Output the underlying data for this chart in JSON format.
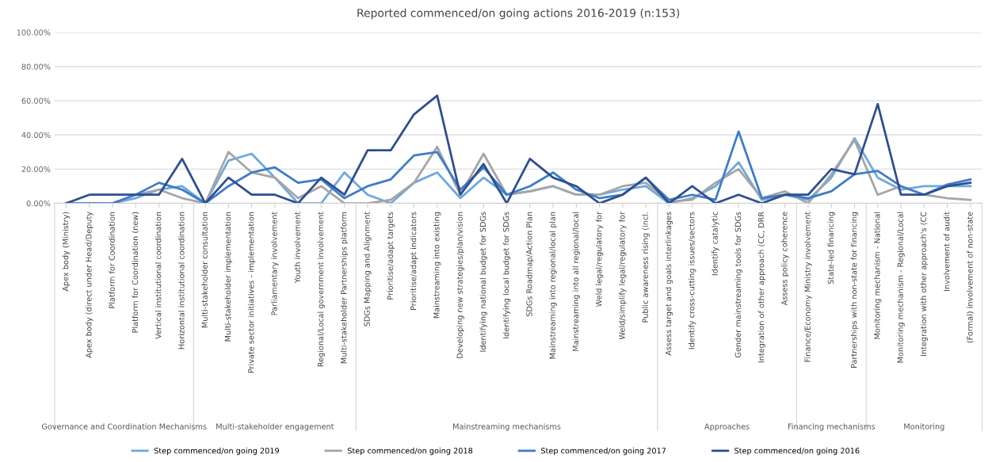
{
  "chart_data": {
    "type": "line",
    "title": "Reported commenced/on going actions 2016-2019 (n:153)",
    "categories": [
      "Apex body (Ministry)",
      "Apex body (direct under Head/Deputy",
      "Platform for Coordination",
      "Platform for Coordination (new)",
      "Vertical institutional coordination",
      "Horizontal institutional coordination",
      "Multi-stakeholder consultation",
      "Multi-stakeholder implementation",
      "Private sector initiatives - implementation",
      "Parliamentary involvement",
      "Youth involvement",
      "Regional/Local government involvement",
      "Multi-stakeholder Partnerships platform",
      "SDGs Mapping and Alignment",
      "Prioritise/adapt targets",
      "Prioritise/adapt indicators",
      "Mainstreaming into existing",
      "Developing new strategies/plan/vision",
      "Identifying national budget for SDGs",
      "Identifying local budget for SDGs",
      "SDGs Roadmap/Action Plan",
      "Mainstreaming into regional/local plan",
      "Mainstreaming into all regional/local",
      "Weld legal/regulatory for",
      "Weld/simplify legal/regulatory for",
      "Public awareness rising (incl.",
      "Assess target and goals interlinkages",
      "Identify cross-cutting issues/sectors",
      "Identify catalytic",
      "Gender mainstreaming tools for SDGs",
      "Integration of other approach (CC, DRR",
      "Assess policy coherence",
      "Finance/Economy Ministry involvement",
      "State-led financing",
      "Partnerships with non-state for financing",
      "Monitoring mechanism - National",
      "Monitoring mechanism - Regional/Local",
      "Integration with other approach's (CC",
      "Involvement of audit",
      "(Formal) involvement of non-state"
    ],
    "series": [
      {
        "name": "Step commenced/on going 2019",
        "color": "#6fa8dc",
        "values": [
          0,
          0,
          0,
          3,
          8,
          10,
          0,
          25,
          29,
          15,
          0,
          0,
          18,
          5,
          0,
          12,
          18,
          3,
          15,
          5,
          7,
          10,
          5,
          5,
          8,
          10,
          0,
          3,
          10,
          24,
          2,
          5,
          2,
          15,
          38,
          15,
          8,
          10,
          10,
          10
        ]
      },
      {
        "name": "Step commenced/on going 2018",
        "color": "#a5a5a5",
        "values": [
          0,
          0,
          0,
          5,
          8,
          3,
          0,
          30,
          18,
          15,
          3,
          10,
          0,
          0,
          2,
          12,
          33,
          5,
          29,
          5,
          7,
          10,
          5,
          5,
          10,
          12,
          1,
          2,
          12,
          20,
          3,
          7,
          0,
          17,
          37,
          5,
          10,
          5,
          3,
          2
        ]
      },
      {
        "name": "Step commenced/on going 2017",
        "color": "#3d7cc9",
        "values": [
          0,
          0,
          0,
          5,
          12,
          8,
          0,
          10,
          18,
          21,
          12,
          14,
          3,
          10,
          14,
          28,
          30,
          8,
          21,
          5,
          10,
          18,
          8,
          3,
          5,
          15,
          2,
          5,
          2,
          42,
          3,
          5,
          3,
          7,
          17,
          19,
          10,
          5,
          11,
          14
        ]
      },
      {
        "name": "Step commenced/on going 2016",
        "color": "#2e4f8f",
        "values": [
          0,
          5,
          5,
          5,
          5,
          26,
          0,
          15,
          5,
          5,
          0,
          15,
          5,
          31,
          31,
          52,
          63,
          5,
          23,
          0,
          26,
          15,
          10,
          0,
          5,
          15,
          0,
          10,
          0,
          5,
          0,
          5,
          5,
          20,
          17,
          58,
          5,
          5,
          10,
          12
        ]
      }
    ],
    "ylim": [
      0,
      100
    ],
    "yticks": [
      {
        "value": 0,
        "label": "0.00%"
      },
      {
        "value": 20,
        "label": "20.00%"
      },
      {
        "value": 40,
        "label": "40.00%"
      },
      {
        "value": 60,
        "label": "60.00%"
      },
      {
        "value": 80,
        "label": "80.00%"
      },
      {
        "value": 100,
        "label": "100.00%"
      }
    ],
    "grid": "y",
    "legend": "bottom",
    "marker": "none",
    "line_style": "solid",
    "annotations": [
      "Governance and Coordination Mechanisms",
      "Multi-stakeholder engagement",
      "Mainstreaming mechanisms",
      "Approaches",
      "Financing mechanisms",
      "Monitoring"
    ]
  }
}
